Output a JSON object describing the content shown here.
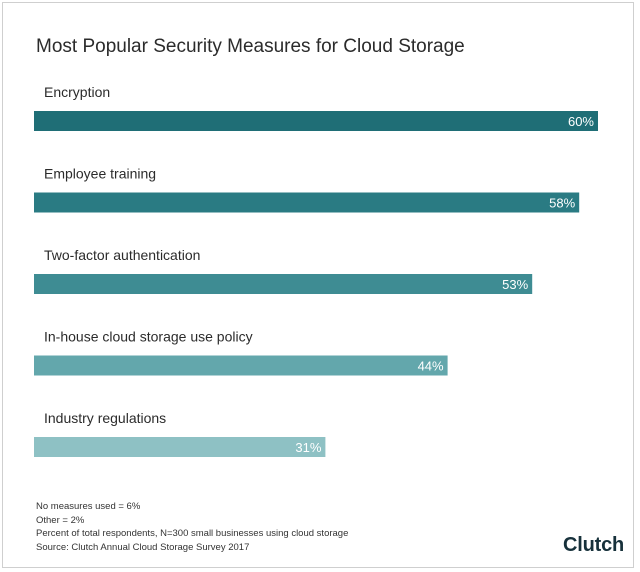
{
  "chart_data": {
    "type": "bar",
    "orientation": "horizontal",
    "title": "Most Popular Security Measures for Cloud Storage",
    "categories": [
      "Encryption",
      "Employee training",
      "Two-factor authentication",
      "In-house cloud storage use policy",
      "Industry regulations"
    ],
    "values": [
      60,
      58,
      53,
      44,
      31
    ],
    "data_labels": [
      "60%",
      "58%",
      "53%",
      "44%",
      "31%"
    ],
    "unit": "%",
    "xlim": [
      0,
      60
    ],
    "grid": false,
    "colors": [
      "#1f6e76",
      "#2a7b83",
      "#3e8c93",
      "#63a7ac",
      "#8ec1c4"
    ]
  },
  "footnotes": [
    "No measures used = 6%",
    "Other = 2%",
    "Percent of total respondents, N=300 small businesses using cloud storage",
    "Source: Clutch Annual Cloud Storage Survey 2017"
  ],
  "logo": "Clutch"
}
